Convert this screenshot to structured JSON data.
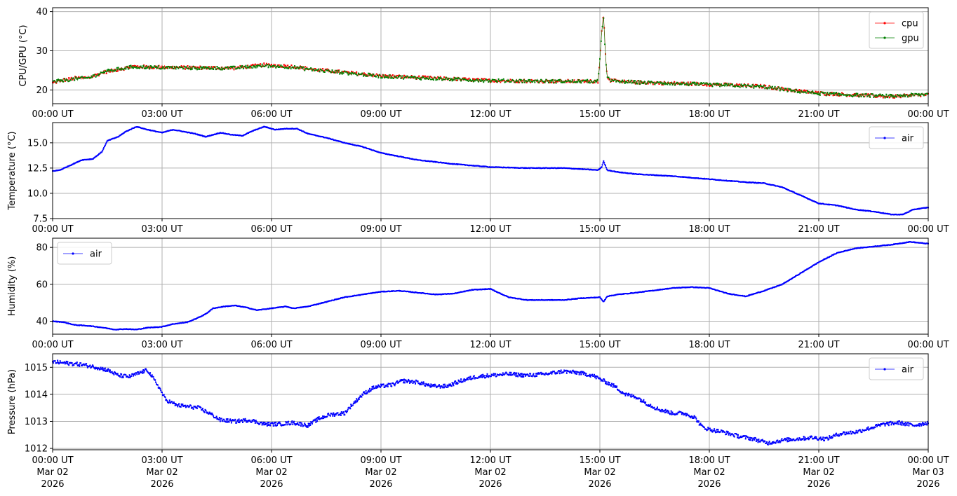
{
  "x_ticks": [
    {
      "time": "00:00 UT",
      "date": "Mar 02",
      "year": "2026"
    },
    {
      "time": "03:00 UT",
      "date": "Mar 02",
      "year": "2026"
    },
    {
      "time": "06:00 UT",
      "date": "Mar 02",
      "year": "2026"
    },
    {
      "time": "09:00 UT",
      "date": "Mar 02",
      "year": "2026"
    },
    {
      "time": "12:00 UT",
      "date": "Mar 02",
      "year": "2026"
    },
    {
      "time": "15:00 UT",
      "date": "Mar 02",
      "year": "2026"
    },
    {
      "time": "18:00 UT",
      "date": "Mar 02",
      "year": "2026"
    },
    {
      "time": "21:00 UT",
      "date": "Mar 02",
      "year": "2026"
    },
    {
      "time": "00:00 UT",
      "date": "Mar 03",
      "year": "2026"
    }
  ],
  "colors": {
    "cpu": "#ff0000",
    "gpu": "#008000",
    "air": "#0000ff",
    "grid": "#b0b0b0"
  },
  "chart_data": [
    {
      "type": "line",
      "ylabel": "CPU/GPU (°C)",
      "ylim": [
        16.5,
        41
      ],
      "yticks": [
        20,
        30,
        40
      ],
      "grid": true,
      "legend": "top-right",
      "x_unit": "hours (UT) from 00:00 UT Mar 02 2026",
      "xlim": [
        0,
        24
      ],
      "series": [
        {
          "name": "cpu",
          "color": "#ff0000",
          "x": [
            0,
            0.3,
            0.6,
            1.0,
            1.4,
            1.8,
            2.2,
            3.0,
            4.0,
            5.0,
            5.8,
            6.5,
            7.2,
            8.0,
            9.0,
            10.0,
            11.0,
            12.0,
            13.0,
            14.0,
            14.95,
            15.0,
            15.05,
            15.1,
            15.15,
            15.2,
            15.3,
            15.6,
            16.5,
            17.5,
            18.5,
            19.5,
            20.2,
            21.0,
            22.0,
            23.0,
            24.0
          ],
          "y": [
            21.8,
            22.5,
            23.0,
            23.2,
            24.5,
            25.2,
            26.0,
            25.8,
            25.7,
            25.6,
            26.4,
            26.1,
            25.2,
            24.5,
            23.6,
            23.2,
            22.8,
            22.4,
            22.3,
            22.2,
            22.2,
            28,
            35,
            39.5,
            30,
            23.5,
            22.4,
            22.1,
            21.8,
            21.6,
            21.3,
            20.9,
            20.0,
            19.2,
            18.7,
            18.3,
            18.8
          ]
        },
        {
          "name": "gpu",
          "color": "#008000",
          "x": [
            0,
            0.3,
            0.6,
            1.0,
            1.4,
            1.8,
            2.2,
            3.0,
            4.0,
            5.0,
            5.8,
            6.5,
            7.2,
            8.0,
            9.0,
            10.0,
            11.0,
            12.0,
            13.0,
            14.0,
            14.95,
            15.0,
            15.05,
            15.1,
            15.15,
            15.2,
            15.3,
            15.6,
            16.5,
            17.5,
            18.5,
            19.5,
            20.2,
            21.0,
            22.0,
            23.0,
            24.0
          ],
          "y": [
            22.0,
            22.5,
            22.8,
            23.1,
            24.6,
            25.3,
            25.9,
            25.7,
            25.6,
            25.6,
            26.2,
            25.9,
            25.1,
            24.4,
            23.5,
            23.1,
            22.7,
            22.4,
            22.3,
            22.2,
            22.2,
            27.5,
            34.5,
            39.2,
            29.5,
            23.2,
            22.3,
            22.1,
            21.8,
            21.5,
            21.2,
            20.8,
            19.9,
            19.1,
            18.7,
            18.4,
            18.9
          ]
        }
      ]
    },
    {
      "type": "line",
      "ylabel": "Temperature (°C)",
      "ylim": [
        7.5,
        17.0
      ],
      "yticks": [
        7.5,
        10.0,
        12.5,
        15.0
      ],
      "grid": true,
      "legend": "top-right",
      "x_unit": "hours (UT) from 00:00 UT Mar 02 2026",
      "xlim": [
        0,
        24
      ],
      "series": [
        {
          "name": "air",
          "color": "#0000ff",
          "x": [
            0,
            0.2,
            0.5,
            0.8,
            1.1,
            1.35,
            1.5,
            1.8,
            2.0,
            2.3,
            2.6,
            3.0,
            3.3,
            3.6,
            3.9,
            4.2,
            4.4,
            4.6,
            4.9,
            5.2,
            5.5,
            5.8,
            6.1,
            6.4,
            6.7,
            7.0,
            7.5,
            8.0,
            8.5,
            9.0,
            10.0,
            11.0,
            12.0,
            13.0,
            14.0,
            14.95,
            15.05,
            15.1,
            15.2,
            15.5,
            16.0,
            17.0,
            18.0,
            19.0,
            19.5,
            20.0,
            20.5,
            21.0,
            21.5,
            22.0,
            22.5,
            23.0,
            23.3,
            23.6,
            24.0
          ],
          "y": [
            12.2,
            12.3,
            12.8,
            13.3,
            13.4,
            14.1,
            15.2,
            15.6,
            16.1,
            16.6,
            16.3,
            16.0,
            16.3,
            16.1,
            15.9,
            15.6,
            15.8,
            16.0,
            15.8,
            15.7,
            16.2,
            16.6,
            16.3,
            16.4,
            16.4,
            15.9,
            15.5,
            15.0,
            14.6,
            14.0,
            13.3,
            12.9,
            12.6,
            12.5,
            12.5,
            12.3,
            12.6,
            13.2,
            12.3,
            12.1,
            11.9,
            11.7,
            11.4,
            11.1,
            11.0,
            10.6,
            9.8,
            9.0,
            8.8,
            8.4,
            8.2,
            7.9,
            7.9,
            8.4,
            8.6
          ]
        }
      ]
    },
    {
      "type": "line",
      "ylabel": "Humidity (%)",
      "ylim": [
        33,
        85
      ],
      "yticks": [
        40,
        60,
        80
      ],
      "grid": true,
      "legend": "top-left",
      "x_unit": "hours (UT) from 00:00 UT Mar 02 2026",
      "xlim": [
        0,
        24
      ],
      "series": [
        {
          "name": "air",
          "color": "#0000ff",
          "x": [
            0,
            0.3,
            0.6,
            1.0,
            1.2,
            1.4,
            1.7,
            2.0,
            2.3,
            2.6,
            3.0,
            3.3,
            3.7,
            4.0,
            4.2,
            4.4,
            4.7,
            5.0,
            5.3,
            5.6,
            5.8,
            6.0,
            6.2,
            6.4,
            6.6,
            6.8,
            7.0,
            7.3,
            7.6,
            8.0,
            8.5,
            9.0,
            9.5,
            10.0,
            10.5,
            11.0,
            11.5,
            12.0,
            12.5,
            13.0,
            14.0,
            14.5,
            15.0,
            15.1,
            15.2,
            15.5,
            16.0,
            17.0,
            17.5,
            18.0,
            18.5,
            19.0,
            19.5,
            20.0,
            20.5,
            21.0,
            21.5,
            22.0,
            22.5,
            23.0,
            23.5,
            24.0
          ],
          "y": [
            40,
            39.5,
            38,
            37.5,
            37,
            36.5,
            35.5,
            35.8,
            35.5,
            36.5,
            37,
            38.5,
            39.5,
            42,
            44,
            47,
            48,
            48.5,
            47.5,
            46,
            46.5,
            47,
            47.5,
            48,
            47,
            47.5,
            48,
            49.5,
            51,
            53,
            54.5,
            56,
            56.5,
            55.5,
            54.5,
            55,
            57,
            57.5,
            53,
            51.5,
            51.5,
            52.5,
            53,
            50.5,
            53.5,
            54.5,
            55.5,
            58,
            58.5,
            58,
            55,
            53.5,
            56.5,
            60,
            66,
            72,
            77,
            79.5,
            80.5,
            81.5,
            83,
            82
          ]
        }
      ]
    },
    {
      "type": "scatter",
      "ylabel": "Pressure (hPa)",
      "ylim": [
        1011.95,
        1015.5
      ],
      "yticks": [
        1012,
        1013,
        1014,
        1015
      ],
      "grid": true,
      "legend": "top-right",
      "x_unit": "hours (UT) from 00:00 UT Mar 02 2026",
      "xlim": [
        0,
        24
      ],
      "series": [
        {
          "name": "air",
          "color": "#0000ff",
          "x": [
            0,
            0.4,
            0.8,
            1.2,
            1.5,
            1.8,
            2.1,
            2.4,
            2.6,
            2.9,
            3.1,
            3.4,
            3.7,
            4.0,
            4.3,
            4.6,
            5.0,
            5.4,
            5.8,
            6.2,
            6.6,
            7.0,
            7.3,
            7.6,
            8.0,
            8.2,
            8.5,
            8.8,
            9.0,
            9.3,
            9.6,
            10.0,
            10.4,
            10.8,
            11.2,
            11.6,
            12.0,
            12.5,
            13.0,
            13.5,
            14.0,
            14.4,
            14.8,
            15.1,
            15.4,
            15.7,
            16.0,
            16.3,
            16.6,
            17.0,
            17.3,
            17.6,
            17.8,
            18.0,
            18.4,
            18.8,
            19.2,
            19.6,
            20.0,
            20.4,
            20.8,
            21.2,
            21.6,
            22.0,
            22.4,
            22.8,
            23.2,
            23.6,
            24.0
          ],
          "y": [
            1015.2,
            1015.15,
            1015.1,
            1015.0,
            1014.9,
            1014.7,
            1014.65,
            1014.8,
            1014.9,
            1014.3,
            1013.8,
            1013.6,
            1013.55,
            1013.5,
            1013.3,
            1013.05,
            1013.0,
            1013.05,
            1012.9,
            1012.9,
            1012.95,
            1012.85,
            1013.1,
            1013.25,
            1013.3,
            1013.6,
            1014.0,
            1014.25,
            1014.3,
            1014.35,
            1014.5,
            1014.45,
            1014.3,
            1014.3,
            1014.5,
            1014.65,
            1014.7,
            1014.75,
            1014.7,
            1014.75,
            1014.85,
            1014.8,
            1014.7,
            1014.5,
            1014.3,
            1014.0,
            1013.9,
            1013.65,
            1013.45,
            1013.3,
            1013.3,
            1013.15,
            1012.8,
            1012.7,
            1012.6,
            1012.45,
            1012.35,
            1012.2,
            1012.3,
            1012.35,
            1012.4,
            1012.35,
            1012.55,
            1012.6,
            1012.75,
            1012.9,
            1012.95,
            1012.85,
            1012.95
          ]
        }
      ]
    }
  ]
}
